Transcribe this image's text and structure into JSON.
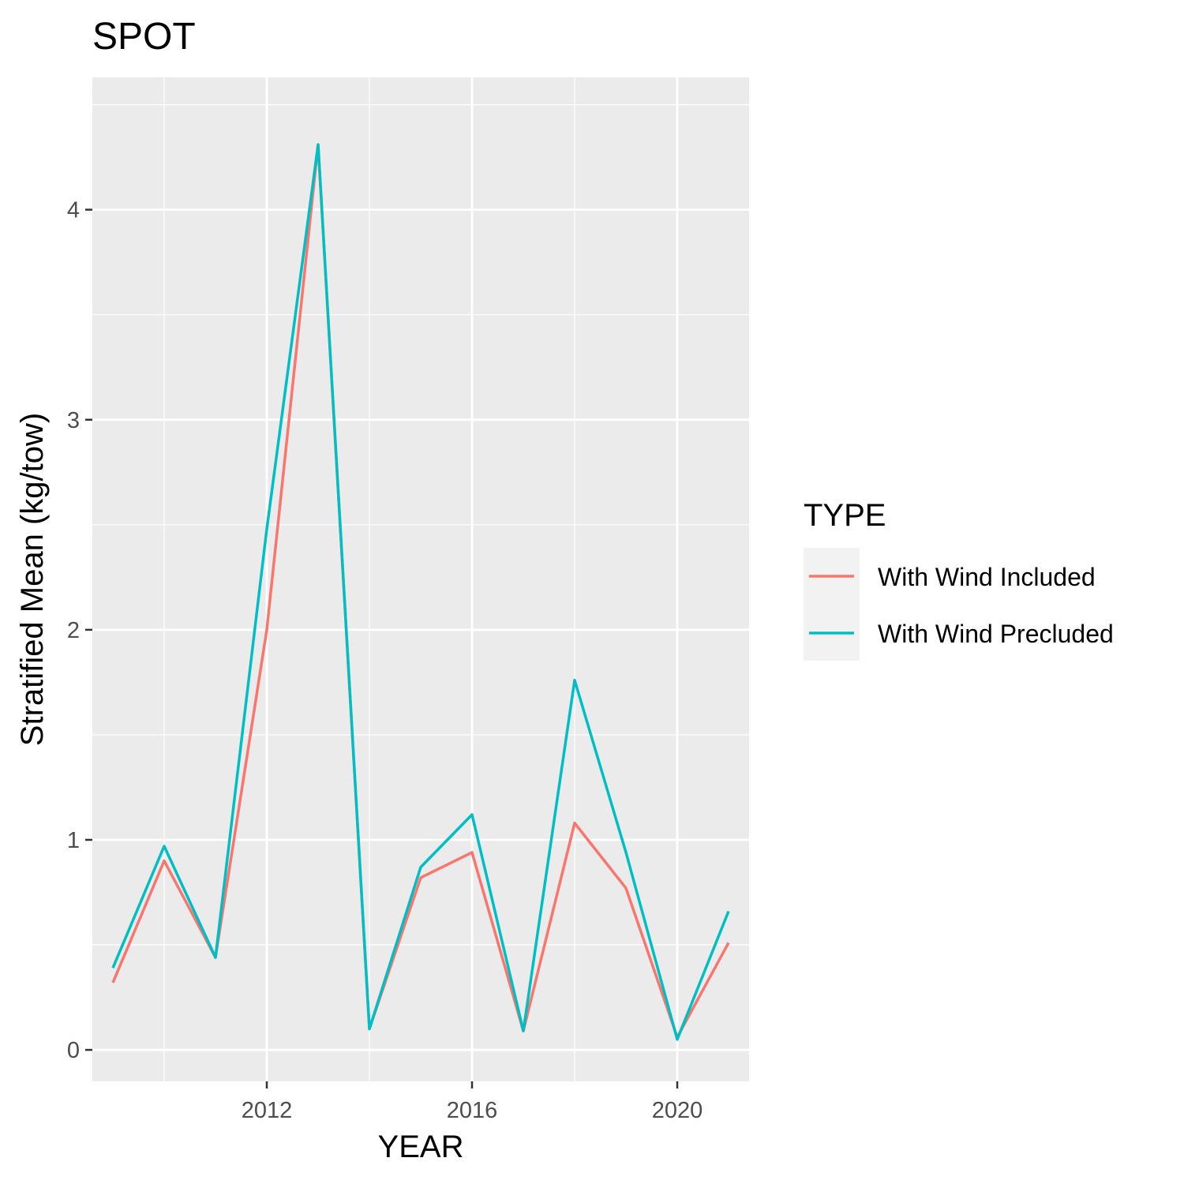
{
  "chart_data": {
    "type": "line",
    "title": "SPOT",
    "xlabel": "YEAR",
    "ylabel": "Stratified Mean (kg/tow)",
    "x": [
      2009,
      2010,
      2011,
      2012,
      2013,
      2014,
      2015,
      2016,
      2017,
      2018,
      2019,
      2020,
      2021
    ],
    "series": [
      {
        "name": "With Wind Included",
        "color": "#F8766D",
        "values": [
          0.32,
          0.9,
          0.44,
          2.0,
          4.31,
          0.1,
          0.82,
          0.94,
          0.09,
          1.08,
          0.77,
          0.06,
          0.51
        ]
      },
      {
        "name": "With Wind Precluded",
        "color": "#00BFC4",
        "values": [
          0.39,
          0.97,
          0.44,
          2.48,
          4.31,
          0.1,
          0.87,
          1.12,
          0.09,
          1.76,
          0.94,
          0.05,
          0.66
        ]
      }
    ],
    "xlim": [
      2008.6,
      2021.4
    ],
    "ylim": [
      -0.15,
      4.63
    ],
    "xticks": [
      2012,
      2016,
      2020
    ],
    "yticks": [
      0,
      1,
      2,
      3,
      4
    ],
    "xtick_labels": [
      "2012",
      "2016",
      "2020"
    ],
    "ytick_labels": [
      "0",
      "1",
      "2",
      "3",
      "4"
    ],
    "legend": {
      "title": "TYPE",
      "position": "right"
    },
    "grid": true,
    "panel_background": "#EBEBEB",
    "grid_color": "#FFFFFF"
  }
}
